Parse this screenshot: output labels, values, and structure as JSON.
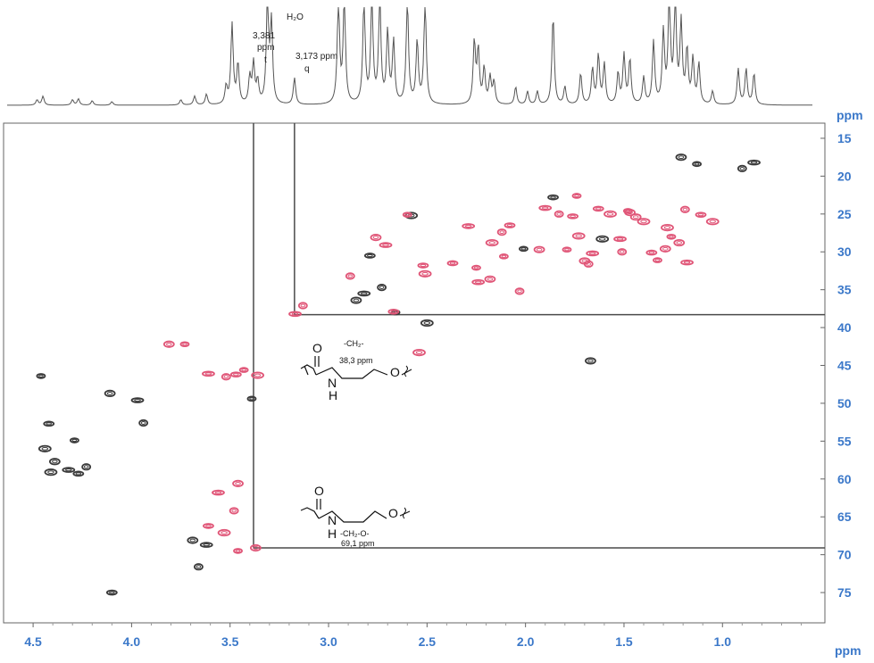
{
  "chart_data": {
    "type": "scatter",
    "title": "",
    "x_axis": {
      "unit": "ppm",
      "range": [
        4.65,
        0.48
      ],
      "reversed": true,
      "ticks": [
        "4.5",
        "4.0",
        "3.5",
        "3.0",
        "2.5",
        "2.0",
        "1.5",
        "1.0"
      ],
      "tick_values": [
        4.5,
        4.0,
        3.5,
        3.0,
        2.5,
        2.0,
        1.5,
        1.0
      ]
    },
    "y_axis": {
      "unit": "ppm",
      "range": [
        13,
        79
      ],
      "reversed": true,
      "position": "right",
      "ticks": [
        "15",
        "20",
        "25",
        "30",
        "35",
        "40",
        "45",
        "50",
        "55",
        "60",
        "65",
        "70",
        "75"
      ],
      "tick_values": [
        15,
        20,
        25,
        30,
        35,
        40,
        45,
        50,
        55,
        60,
        65,
        70,
        75
      ]
    },
    "grid": false,
    "proton_spectrum": {
      "annotations": [
        {
          "lines": [
            "3,381",
            "ppm",
            "t"
          ],
          "ppm": 3.381
        },
        {
          "lines": [
            "H₂O"
          ],
          "ppm": 3.31
        },
        {
          "lines": [
            "3,173 ppm",
            "q"
          ],
          "ppm": 3.173
        }
      ]
    },
    "colors": {
      "positive": "#e05577",
      "negative": "#3a3a3a",
      "axis_text": "#3b78c9",
      "lines": "#4a4a4a"
    },
    "series": [
      {
        "phase": "negative",
        "points": [
          [
            4.46,
            46.4
          ],
          [
            4.11,
            48.7
          ],
          [
            3.97,
            49.6
          ],
          [
            3.94,
            52.6
          ],
          [
            4.42,
            52.7
          ],
          [
            4.44,
            56.0
          ],
          [
            4.29,
            54.9
          ],
          [
            4.39,
            57.7
          ],
          [
            4.32,
            58.8
          ],
          [
            4.23,
            58.4
          ],
          [
            4.27,
            59.3
          ],
          [
            4.41,
            59.1
          ],
          [
            3.39,
            49.4
          ],
          [
            3.69,
            68.1
          ],
          [
            3.62,
            68.7
          ],
          [
            3.66,
            71.6
          ],
          [
            4.1,
            75.0
          ],
          [
            2.5,
            39.4
          ],
          [
            2.66,
            38.0
          ],
          [
            2.86,
            36.4
          ],
          [
            2.82,
            35.5
          ],
          [
            2.73,
            34.7
          ],
          [
            2.79,
            30.5
          ],
          [
            2.58,
            25.2
          ],
          [
            1.13,
            18.4
          ],
          [
            1.21,
            17.5
          ],
          [
            0.84,
            18.2
          ],
          [
            0.9,
            19.0
          ],
          [
            1.86,
            22.8
          ],
          [
            1.61,
            28.3
          ],
          [
            2.01,
            29.6
          ],
          [
            1.67,
            44.4
          ]
        ]
      },
      {
        "phase": "positive",
        "points": [
          [
            3.73,
            42.2
          ],
          [
            3.81,
            42.2
          ],
          [
            3.61,
            46.1
          ],
          [
            3.52,
            46.5
          ],
          [
            3.47,
            46.2
          ],
          [
            3.36,
            46.3
          ],
          [
            3.43,
            45.6
          ],
          [
            3.46,
            60.6
          ],
          [
            3.56,
            61.8
          ],
          [
            3.48,
            64.2
          ],
          [
            3.61,
            66.2
          ],
          [
            3.53,
            67.1
          ],
          [
            3.46,
            69.5
          ],
          [
            3.37,
            69.1
          ],
          [
            3.17,
            38.2
          ],
          [
            3.13,
            37.1
          ],
          [
            2.67,
            37.9
          ],
          [
            2.54,
            43.3
          ],
          [
            2.6,
            25.1
          ],
          [
            2.76,
            28.1
          ],
          [
            2.71,
            29.1
          ],
          [
            2.89,
            33.2
          ],
          [
            2.52,
            31.8
          ],
          [
            2.51,
            32.9
          ],
          [
            2.25,
            32.1
          ],
          [
            2.18,
            33.6
          ],
          [
            2.24,
            34.0
          ],
          [
            2.03,
            35.2
          ],
          [
            2.37,
            31.5
          ],
          [
            2.17,
            28.8
          ],
          [
            2.11,
            30.6
          ],
          [
            1.93,
            29.7
          ],
          [
            1.9,
            24.2
          ],
          [
            1.83,
            25.0
          ],
          [
            1.76,
            25.3
          ],
          [
            1.73,
            27.9
          ],
          [
            1.79,
            29.7
          ],
          [
            1.7,
            31.2
          ],
          [
            1.66,
            30.2
          ],
          [
            1.68,
            31.6
          ],
          [
            1.63,
            24.3
          ],
          [
            1.57,
            25.0
          ],
          [
            1.48,
            24.6
          ],
          [
            1.44,
            25.4
          ],
          [
            1.52,
            28.3
          ],
          [
            1.51,
            30.0
          ],
          [
            1.36,
            30.1
          ],
          [
            1.28,
            26.8
          ],
          [
            1.26,
            28.0
          ],
          [
            1.22,
            28.8
          ],
          [
            1.18,
            31.4
          ],
          [
            1.19,
            24.4
          ],
          [
            1.11,
            25.1
          ],
          [
            1.05,
            26.0
          ],
          [
            1.74,
            22.6
          ],
          [
            1.47,
            24.8
          ],
          [
            2.29,
            26.6
          ],
          [
            2.12,
            27.4
          ],
          [
            2.08,
            26.5
          ],
          [
            1.4,
            26.0
          ],
          [
            1.33,
            31.1
          ],
          [
            1.29,
            29.6
          ]
        ]
      }
    ],
    "correlation_markers": [
      {
        "ppm_h": 3.381,
        "ppm_c": 69.1
      },
      {
        "ppm_h": 3.173,
        "ppm_c": 38.3
      }
    ],
    "structures": [
      {
        "label_top": "-CH₂-",
        "label_bottom": "38,3 ppm",
        "o_atom": "O",
        "n_atom": "N",
        "h_atom": "H",
        "o_ring": "O"
      },
      {
        "label_top": "-CH₂-O-",
        "label_bottom": "69,1 ppm",
        "o_atom": "O",
        "n_atom": "N",
        "h_atom": "H",
        "o_ring": "O"
      }
    ]
  }
}
